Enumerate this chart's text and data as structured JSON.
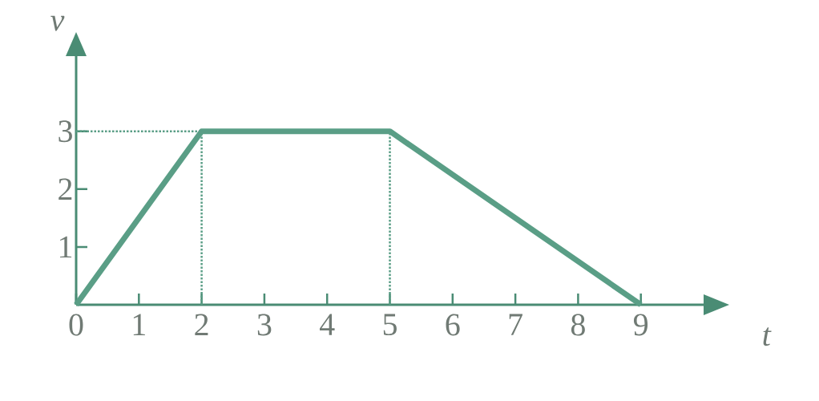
{
  "chart_data": {
    "type": "line",
    "xlabel": "t",
    "ylabel": "v",
    "x": [
      0,
      2,
      5,
      9
    ],
    "series": [
      {
        "color": "#5a9e86",
        "values": [
          0,
          3,
          3,
          0
        ]
      }
    ],
    "xlim": [
      0,
      10
    ],
    "ylim": [
      0,
      4.3
    ],
    "xticks": [
      0,
      1,
      2,
      3,
      4,
      5,
      6,
      7,
      8,
      9
    ],
    "yticks": [
      1,
      2,
      3
    ],
    "ref_lines": [
      {
        "axis": "y",
        "value": 3,
        "line_style": "dotted"
      },
      {
        "axis": "x",
        "value": 2,
        "line_style": "dotted"
      },
      {
        "axis": "x",
        "value": 5,
        "line_style": "dotted"
      }
    ],
    "grid": false,
    "marker": "none",
    "line_style": "solid"
  }
}
